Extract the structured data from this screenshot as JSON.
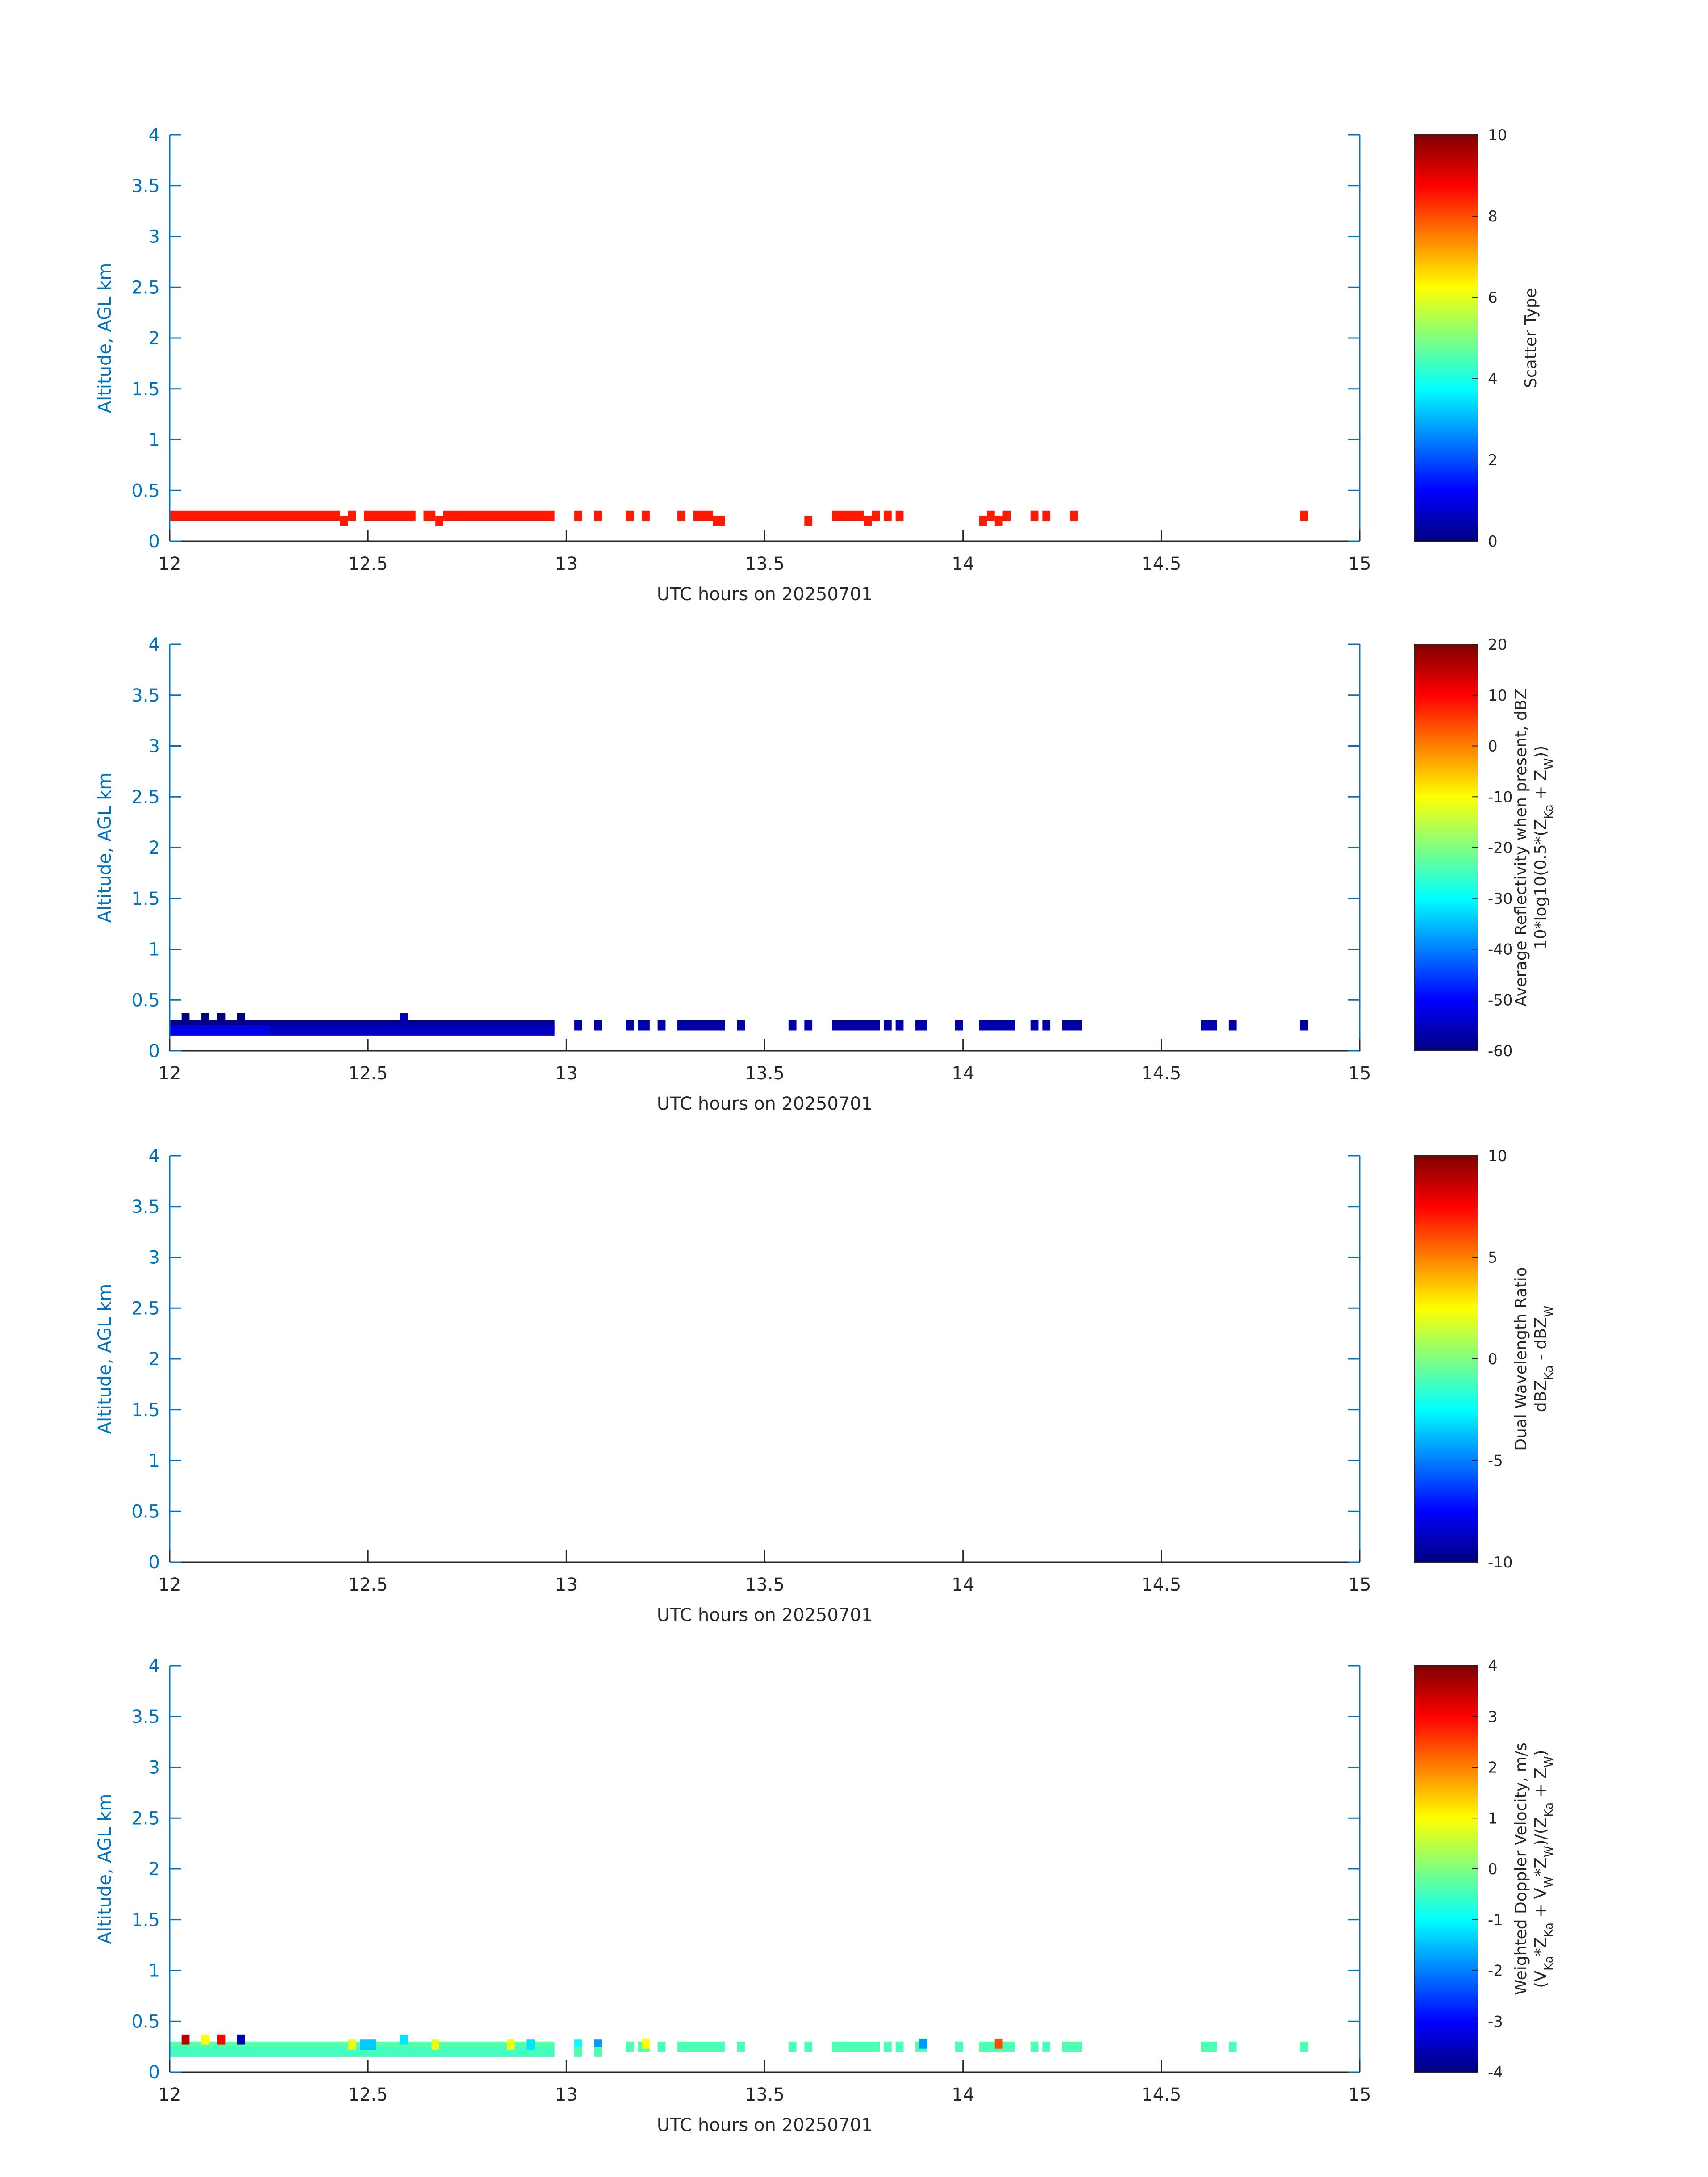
{
  "figure": {
    "background": "#ffffff",
    "axis_color": "#0072BD",
    "text_color": "#262626"
  },
  "chart_data": [
    {
      "type": "heatmap",
      "id": "scatter-type",
      "xlabel": "UTC hours on 20250701",
      "ylabel": "Altitude, AGL km",
      "xlim": [
        12,
        15
      ],
      "ylim": [
        0,
        4
      ],
      "x_ticks": [
        "12",
        "12.5",
        "13",
        "13.5",
        "14",
        "14.5",
        "15"
      ],
      "y_ticks": [
        "0",
        "0.5",
        "1",
        "1.5",
        "2",
        "2.5",
        "3",
        "3.5",
        "4"
      ],
      "colorbar": {
        "colormap": "jet",
        "range": [
          0,
          10
        ],
        "ticks": [
          "0",
          "2",
          "4",
          "6",
          "8",
          "10"
        ],
        "label_lines": [
          "Scatter Type"
        ]
      },
      "cell_height_km": 0.1,
      "cells": [
        {
          "x0": 12.0,
          "x1": 12.43,
          "y": 0.25,
          "v": 8.5
        },
        {
          "x0": 12.43,
          "x1": 12.45,
          "y": 0.2,
          "v": 8.5
        },
        {
          "x0": 12.45,
          "x1": 12.47,
          "y": 0.25,
          "v": 8.5
        },
        {
          "x0": 12.49,
          "x1": 12.62,
          "y": 0.25,
          "v": 8.5
        },
        {
          "x0": 12.64,
          "x1": 12.67,
          "y": 0.25,
          "v": 8.5
        },
        {
          "x0": 12.67,
          "x1": 12.69,
          "y": 0.2,
          "v": 8.5
        },
        {
          "x0": 12.69,
          "x1": 12.97,
          "y": 0.25,
          "v": 8.5
        },
        {
          "x0": 13.02,
          "x1": 13.04,
          "y": 0.25,
          "v": 8.5
        },
        {
          "x0": 13.07,
          "x1": 13.09,
          "y": 0.25,
          "v": 8.5
        },
        {
          "x0": 13.15,
          "x1": 13.17,
          "y": 0.25,
          "v": 8.5
        },
        {
          "x0": 13.19,
          "x1": 13.21,
          "y": 0.25,
          "v": 8.5
        },
        {
          "x0": 13.28,
          "x1": 13.3,
          "y": 0.25,
          "v": 8.5
        },
        {
          "x0": 13.32,
          "x1": 13.37,
          "y": 0.25,
          "v": 8.5
        },
        {
          "x0": 13.37,
          "x1": 13.4,
          "y": 0.2,
          "v": 8.5
        },
        {
          "x0": 13.6,
          "x1": 13.62,
          "y": 0.2,
          "v": 8.5
        },
        {
          "x0": 13.67,
          "x1": 13.75,
          "y": 0.25,
          "v": 8.5
        },
        {
          "x0": 13.75,
          "x1": 13.77,
          "y": 0.2,
          "v": 8.5
        },
        {
          "x0": 13.77,
          "x1": 13.79,
          "y": 0.25,
          "v": 8.5
        },
        {
          "x0": 13.8,
          "x1": 13.82,
          "y": 0.25,
          "v": 8.5
        },
        {
          "x0": 13.83,
          "x1": 13.85,
          "y": 0.25,
          "v": 8.5
        },
        {
          "x0": 14.04,
          "x1": 14.06,
          "y": 0.2,
          "v": 8.5
        },
        {
          "x0": 14.06,
          "x1": 14.08,
          "y": 0.25,
          "v": 8.5
        },
        {
          "x0": 14.08,
          "x1": 14.1,
          "y": 0.2,
          "v": 8.5
        },
        {
          "x0": 14.1,
          "x1": 14.12,
          "y": 0.25,
          "v": 8.5
        },
        {
          "x0": 14.17,
          "x1": 14.19,
          "y": 0.25,
          "v": 8.5
        },
        {
          "x0": 14.2,
          "x1": 14.22,
          "y": 0.25,
          "v": 8.5
        },
        {
          "x0": 14.27,
          "x1": 14.29,
          "y": 0.25,
          "v": 8.5
        },
        {
          "x0": 14.85,
          "x1": 14.87,
          "y": 0.25,
          "v": 8.5
        }
      ]
    },
    {
      "type": "heatmap",
      "id": "average-reflectivity",
      "xlabel": "UTC hours on 20250701",
      "ylabel": "Altitude, AGL km",
      "xlim": [
        12,
        15
      ],
      "ylim": [
        0,
        4
      ],
      "x_ticks": [
        "12",
        "12.5",
        "13",
        "13.5",
        "14",
        "14.5",
        "15"
      ],
      "y_ticks": [
        "0",
        "0.5",
        "1",
        "1.5",
        "2",
        "2.5",
        "3",
        "3.5",
        "4"
      ],
      "colorbar": {
        "colormap": "jet",
        "range": [
          -60,
          20
        ],
        "ticks": [
          "-60",
          "-50",
          "-40",
          "-30",
          "-20",
          "-10",
          "0",
          "10",
          "20"
        ],
        "label_lines": [
          "Average Reflectivity when present, dBZ",
          "10*log10(0.5*(Z_Ka + Z_W))"
        ]
      },
      "cell_height_km": 0.1,
      "cells": [
        {
          "x0": 12.0,
          "x1": 12.97,
          "y": 0.25,
          "v": -58
        },
        {
          "x0": 12.0,
          "x1": 12.25,
          "y": 0.2,
          "v": -52
        },
        {
          "x0": 12.25,
          "x1": 12.97,
          "y": 0.2,
          "v": -55
        },
        {
          "x0": 12.03,
          "x1": 12.05,
          "y": 0.32,
          "v": -60
        },
        {
          "x0": 12.08,
          "x1": 12.1,
          "y": 0.32,
          "v": -60
        },
        {
          "x0": 12.12,
          "x1": 12.14,
          "y": 0.32,
          "v": -60
        },
        {
          "x0": 12.17,
          "x1": 12.19,
          "y": 0.32,
          "v": -60
        },
        {
          "x0": 12.58,
          "x1": 12.6,
          "y": 0.32,
          "v": -56
        },
        {
          "x0": 13.02,
          "x1": 13.04,
          "y": 0.25,
          "v": -56
        },
        {
          "x0": 13.07,
          "x1": 13.09,
          "y": 0.25,
          "v": -57
        },
        {
          "x0": 13.15,
          "x1": 13.17,
          "y": 0.25,
          "v": -57
        },
        {
          "x0": 13.18,
          "x1": 13.21,
          "y": 0.25,
          "v": -56
        },
        {
          "x0": 13.23,
          "x1": 13.25,
          "y": 0.25,
          "v": -57
        },
        {
          "x0": 13.28,
          "x1": 13.4,
          "y": 0.25,
          "v": -57
        },
        {
          "x0": 13.43,
          "x1": 13.45,
          "y": 0.25,
          "v": -57
        },
        {
          "x0": 13.56,
          "x1": 13.58,
          "y": 0.25,
          "v": -57
        },
        {
          "x0": 13.6,
          "x1": 13.62,
          "y": 0.25,
          "v": -56
        },
        {
          "x0": 13.67,
          "x1": 13.79,
          "y": 0.25,
          "v": -57
        },
        {
          "x0": 13.8,
          "x1": 13.82,
          "y": 0.25,
          "v": -57
        },
        {
          "x0": 13.83,
          "x1": 13.85,
          "y": 0.25,
          "v": -57
        },
        {
          "x0": 13.88,
          "x1": 13.91,
          "y": 0.25,
          "v": -57
        },
        {
          "x0": 13.98,
          "x1": 14.0,
          "y": 0.25,
          "v": -57
        },
        {
          "x0": 14.04,
          "x1": 14.13,
          "y": 0.25,
          "v": -56
        },
        {
          "x0": 14.17,
          "x1": 14.19,
          "y": 0.25,
          "v": -57
        },
        {
          "x0": 14.2,
          "x1": 14.22,
          "y": 0.25,
          "v": -57
        },
        {
          "x0": 14.25,
          "x1": 14.3,
          "y": 0.25,
          "v": -57
        },
        {
          "x0": 14.6,
          "x1": 14.64,
          "y": 0.25,
          "v": -56
        },
        {
          "x0": 14.67,
          "x1": 14.69,
          "y": 0.25,
          "v": -57
        },
        {
          "x0": 14.85,
          "x1": 14.87,
          "y": 0.25,
          "v": -57
        }
      ]
    },
    {
      "type": "heatmap",
      "id": "dual-wavelength-ratio",
      "xlabel": "UTC hours on 20250701",
      "ylabel": "Altitude, AGL km",
      "xlim": [
        12,
        15
      ],
      "ylim": [
        0,
        4
      ],
      "x_ticks": [
        "12",
        "12.5",
        "13",
        "13.5",
        "14",
        "14.5",
        "15"
      ],
      "y_ticks": [
        "0",
        "0.5",
        "1",
        "1.5",
        "2",
        "2.5",
        "3",
        "3.5",
        "4"
      ],
      "colorbar": {
        "colormap": "jet",
        "range": [
          -10,
          10
        ],
        "ticks": [
          "-10",
          "-5",
          "0",
          "5",
          "10"
        ],
        "label_lines": [
          "Dual Wavelength Ratio",
          "dBZ_Ka - dBZ_W"
        ]
      },
      "cell_height_km": 0.1,
      "cells": []
    },
    {
      "type": "heatmap",
      "id": "weighted-doppler-velocity",
      "xlabel": "UTC hours on 20250701",
      "ylabel": "Altitude, AGL km",
      "xlim": [
        12,
        15
      ],
      "ylim": [
        0,
        4
      ],
      "x_ticks": [
        "12",
        "12.5",
        "13",
        "13.5",
        "14",
        "14.5",
        "15"
      ],
      "y_ticks": [
        "0",
        "0.5",
        "1",
        "1.5",
        "2",
        "2.5",
        "3",
        "3.5",
        "4"
      ],
      "colorbar": {
        "colormap": "jet",
        "range": [
          -4,
          4
        ],
        "ticks": [
          "-4",
          "-3",
          "-2",
          "-1",
          "0",
          "1",
          "2",
          "3",
          "4"
        ],
        "label_lines": [
          "Weighted Doppler Velocity, m/s",
          "(V_Ka*Z_Ka + V_W*Z_W)/(Z_Ka + Z_W)"
        ]
      },
      "cell_height_km": 0.1,
      "cells": [
        {
          "x0": 12.0,
          "x1": 12.97,
          "y": 0.25,
          "v": -0.3
        },
        {
          "x0": 12.0,
          "x1": 12.97,
          "y": 0.2,
          "v": -0.5
        },
        {
          "x0": 12.03,
          "x1": 12.05,
          "y": 0.32,
          "v": 3.6
        },
        {
          "x0": 12.08,
          "x1": 12.1,
          "y": 0.32,
          "v": 1.0
        },
        {
          "x0": 12.12,
          "x1": 12.14,
          "y": 0.32,
          "v": 3.0
        },
        {
          "x0": 12.17,
          "x1": 12.19,
          "y": 0.32,
          "v": -3.6
        },
        {
          "x0": 12.48,
          "x1": 12.52,
          "y": 0.27,
          "v": -1.4
        },
        {
          "x0": 12.45,
          "x1": 12.47,
          "y": 0.27,
          "v": 0.8
        },
        {
          "x0": 12.58,
          "x1": 12.6,
          "y": 0.32,
          "v": -1.2
        },
        {
          "x0": 12.66,
          "x1": 12.68,
          "y": 0.27,
          "v": 0.8
        },
        {
          "x0": 12.85,
          "x1": 12.87,
          "y": 0.27,
          "v": 0.9
        },
        {
          "x0": 12.9,
          "x1": 12.92,
          "y": 0.27,
          "v": -1.2
        },
        {
          "x0": 13.02,
          "x1": 13.04,
          "y": 0.27,
          "v": -1.0
        },
        {
          "x0": 13.02,
          "x1": 13.04,
          "y": 0.2,
          "v": -0.4
        },
        {
          "x0": 13.07,
          "x1": 13.09,
          "y": 0.27,
          "v": -1.8
        },
        {
          "x0": 13.07,
          "x1": 13.09,
          "y": 0.2,
          "v": -0.4
        },
        {
          "x0": 13.15,
          "x1": 13.17,
          "y": 0.25,
          "v": -0.4
        },
        {
          "x0": 13.18,
          "x1": 13.21,
          "y": 0.25,
          "v": -0.4
        },
        {
          "x0": 13.19,
          "x1": 13.21,
          "y": 0.28,
          "v": 1.0
        },
        {
          "x0": 13.23,
          "x1": 13.25,
          "y": 0.25,
          "v": -0.4
        },
        {
          "x0": 13.28,
          "x1": 13.4,
          "y": 0.25,
          "v": -0.4
        },
        {
          "x0": 13.43,
          "x1": 13.45,
          "y": 0.25,
          "v": -0.4
        },
        {
          "x0": 13.56,
          "x1": 13.58,
          "y": 0.25,
          "v": -0.4
        },
        {
          "x0": 13.6,
          "x1": 13.62,
          "y": 0.25,
          "v": -0.4
        },
        {
          "x0": 13.67,
          "x1": 13.79,
          "y": 0.25,
          "v": -0.4
        },
        {
          "x0": 13.8,
          "x1": 13.82,
          "y": 0.25,
          "v": -0.4
        },
        {
          "x0": 13.83,
          "x1": 13.85,
          "y": 0.25,
          "v": -0.4
        },
        {
          "x0": 13.88,
          "x1": 13.91,
          "y": 0.25,
          "v": -0.4
        },
        {
          "x0": 13.89,
          "x1": 13.91,
          "y": 0.28,
          "v": -1.8
        },
        {
          "x0": 13.98,
          "x1": 14.0,
          "y": 0.25,
          "v": -0.4
        },
        {
          "x0": 14.04,
          "x1": 14.13,
          "y": 0.25,
          "v": -0.4
        },
        {
          "x0": 14.08,
          "x1": 14.1,
          "y": 0.28,
          "v": 2.4
        },
        {
          "x0": 14.17,
          "x1": 14.19,
          "y": 0.25,
          "v": -0.4
        },
        {
          "x0": 14.2,
          "x1": 14.22,
          "y": 0.25,
          "v": -0.4
        },
        {
          "x0": 14.25,
          "x1": 14.3,
          "y": 0.25,
          "v": -0.4
        },
        {
          "x0": 14.6,
          "x1": 14.64,
          "y": 0.25,
          "v": -0.4
        },
        {
          "x0": 14.67,
          "x1": 14.69,
          "y": 0.25,
          "v": -0.4
        },
        {
          "x0": 14.85,
          "x1": 14.87,
          "y": 0.25,
          "v": -0.4
        }
      ]
    }
  ]
}
